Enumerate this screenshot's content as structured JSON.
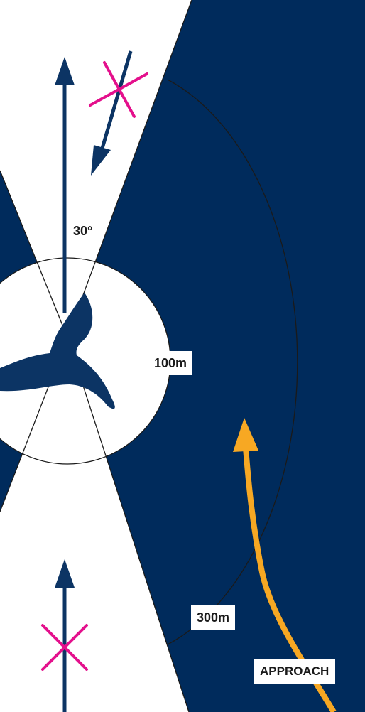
{
  "labels": {
    "angle": "30°",
    "inner_radius": "100m",
    "outer_radius": "300m",
    "approach": "APPROACH"
  },
  "colors": {
    "background": "#002b5c",
    "zone": "#ffffff",
    "allowed_arrow": "#0c3464",
    "forbidden_mark": "#e4108c",
    "approach_arrow": "#f7a823",
    "ring_line": "#1a1a1a"
  },
  "icons": {
    "centre": "whale-tail-icon",
    "forbidden": "cross-mark-icon"
  }
}
